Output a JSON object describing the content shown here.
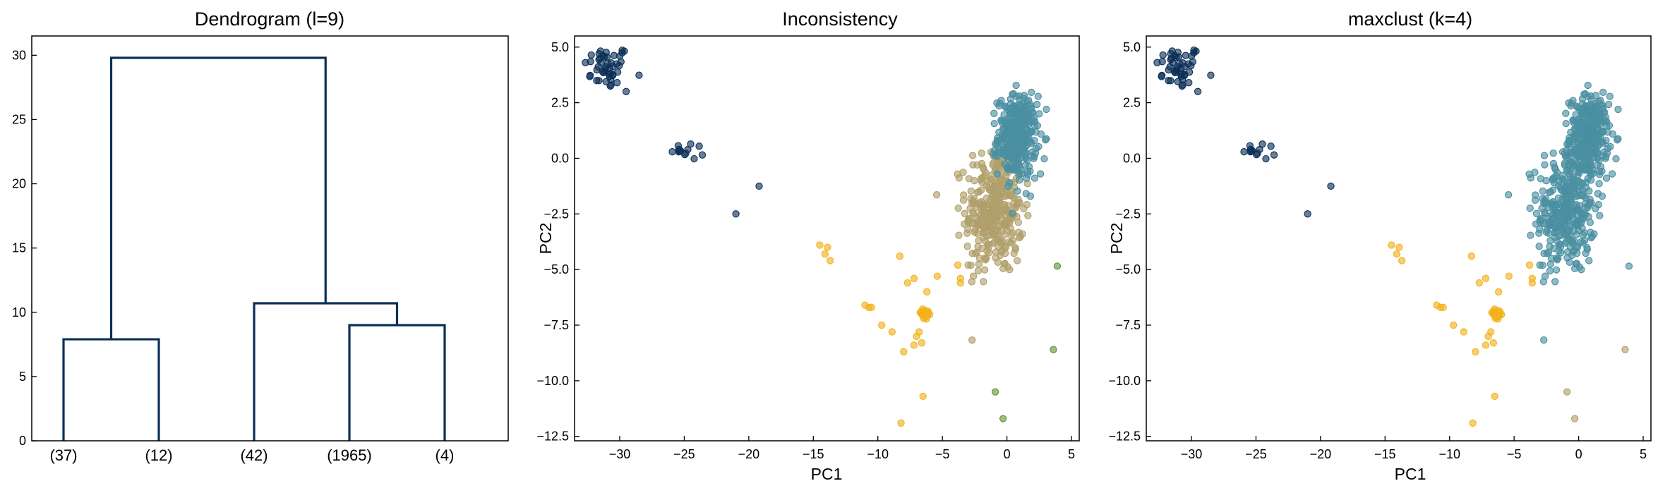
{
  "colors": {
    "navy": "#0b2f57",
    "teal": "#4a8fa1",
    "sand": "#b09f6a",
    "gold": "#f2b21a",
    "green": "#5e9636"
  },
  "chart_data": [
    {
      "type": "dendrogram",
      "title": "Dendrogram (l=9)",
      "xlabel": "",
      "ylabel": "",
      "ylim": [
        0,
        31.5
      ],
      "yticks": [
        0,
        5,
        10,
        15,
        20,
        25,
        30
      ],
      "leaves": [
        "(37)",
        "(12)",
        "(42)",
        "(1965)",
        "(4)"
      ],
      "links": [
        {
          "left": "(37)",
          "right": "(12)",
          "height": 7.9
        },
        {
          "left": "(1965)",
          "right": "(4)",
          "height": 9.0
        },
        {
          "left": "(42)",
          "right": "(1965)+(4)",
          "height": 10.7
        },
        {
          "left": "(37)+(12)",
          "right": "(42)+(1965)+(4)",
          "height": 29.8
        }
      ]
    },
    {
      "type": "scatter",
      "title": "Inconsistency",
      "xlabel": "PC1",
      "ylabel": "PC2",
      "xlim": [
        -33.5,
        5.6
      ],
      "ylim": [
        -12.7,
        5.5
      ],
      "xticks": [
        -30,
        -25,
        -20,
        -15,
        -10,
        -5,
        0,
        5
      ],
      "yticks": [
        -12.5,
        -10.0,
        -7.5,
        -5.0,
        -2.5,
        0.0,
        2.5,
        5.0
      ],
      "series": [
        {
          "color": "navy",
          "clusters": [
            {
              "center": [
                -31.0,
                4.1
              ],
              "spread": [
                0.9,
                0.5
              ],
              "count": 45
            },
            {
              "center": [
                -24.4,
                0.3
              ],
              "spread": [
                0.8,
                0.2
              ],
              "count": 12
            }
          ],
          "points": [
            [
              -29.5,
              3.0
            ],
            [
              -23.6,
              0.15
            ],
            [
              -21.0,
              -2.5
            ],
            [
              -19.2,
              -1.25
            ],
            [
              -30.2,
              3.4
            ],
            [
              -31.6,
              4.7
            ]
          ]
        },
        {
          "color": "sand",
          "clusters": [
            {
              "center": [
                -1.0,
                -2.3
              ],
              "spread": [
                1.1,
                1.4
              ],
              "count": 320
            }
          ],
          "points": [
            [
              -3.0,
              -4.8
            ],
            [
              -2.6,
              -5.3
            ],
            [
              -1.6,
              -4.5
            ],
            [
              -2.2,
              -3.7
            ],
            [
              0.2,
              -5.0
            ],
            [
              0.8,
              -4.6
            ],
            [
              1.2,
              -3.4
            ],
            [
              -2.3,
              -0.3
            ],
            [
              -0.6,
              0.0
            ]
          ]
        },
        {
          "color": "teal",
          "clusters": [
            {
              "center": [
                0.8,
                1.0
              ],
              "spread": [
                0.75,
                0.9
              ],
              "count": 320
            }
          ],
          "points": [
            [
              1.6,
              -0.6
            ],
            [
              1.5,
              -0.9
            ],
            [
              2.6,
              -0.7
            ],
            [
              2.5,
              2.0
            ],
            [
              1.3,
              2.7
            ],
            [
              -0.6,
              0.4
            ]
          ]
        },
        {
          "color": "gold",
          "clusters": [
            {
              "center": [
                -6.4,
                -7.0
              ],
              "spread": [
                0.3,
                0.15
              ],
              "count": 18
            }
          ],
          "points": [
            [
              -14.5,
              -3.9
            ],
            [
              -14.1,
              -4.3
            ],
            [
              -13.7,
              -4.6
            ],
            [
              -13.9,
              -4.0
            ],
            [
              -11.0,
              -6.6
            ],
            [
              -10.7,
              -6.7
            ],
            [
              -10.5,
              -6.7
            ],
            [
              -9.7,
              -7.5
            ],
            [
              -8.9,
              -7.8
            ],
            [
              -8.3,
              -4.4
            ],
            [
              -7.7,
              -5.6
            ],
            [
              -8.0,
              -8.7
            ],
            [
              -7.2,
              -5.4
            ],
            [
              -6.2,
              -6.0
            ],
            [
              -7.0,
              -8.0
            ],
            [
              -6.8,
              -7.8
            ],
            [
              -7.2,
              -8.4
            ],
            [
              -6.6,
              -8.3
            ],
            [
              -8.2,
              -11.9
            ],
            [
              -6.5,
              -10.7
            ],
            [
              -5.4,
              -5.3
            ],
            [
              -3.8,
              -4.8
            ],
            [
              -3.6,
              -5.4
            ],
            [
              -3.6,
              -5.6
            ]
          ]
        },
        {
          "color": "green",
          "points": [
            [
              3.9,
              -4.85
            ],
            [
              3.6,
              -8.6
            ],
            [
              -0.9,
              -10.5
            ],
            [
              -0.3,
              -11.7
            ]
          ]
        }
      ]
    },
    {
      "type": "scatter",
      "title": "maxclust (k=4)",
      "xlabel": "PC1",
      "ylabel": "PC2",
      "xlim": [
        -33.5,
        5.6
      ],
      "ylim": [
        -12.7,
        5.5
      ],
      "xticks": [
        -30,
        -25,
        -20,
        -15,
        -10,
        -5,
        0,
        5
      ],
      "yticks": [
        -12.5,
        -10.0,
        -7.5,
        -5.0,
        -2.5,
        0.0,
        2.5,
        5.0
      ],
      "series": [
        {
          "color": "navy",
          "clusters": [
            {
              "center": [
                -31.0,
                4.1
              ],
              "spread": [
                0.9,
                0.5
              ],
              "count": 45
            },
            {
              "center": [
                -24.4,
                0.3
              ],
              "spread": [
                0.8,
                0.2
              ],
              "count": 12
            }
          ],
          "points": [
            [
              -29.5,
              3.0
            ],
            [
              -23.6,
              0.15
            ],
            [
              -21.0,
              -2.5
            ],
            [
              -19.2,
              -1.25
            ],
            [
              -30.2,
              3.4
            ],
            [
              -31.6,
              4.7
            ]
          ]
        },
        {
          "color": "teal",
          "clusters": [
            {
              "center": [
                -1.0,
                -2.3
              ],
              "spread": [
                1.1,
                1.4
              ],
              "count": 320
            },
            {
              "center": [
                0.8,
                1.0
              ],
              "spread": [
                0.75,
                0.9
              ],
              "count": 320
            }
          ],
          "points": [
            [
              -3.0,
              -4.8
            ],
            [
              -2.6,
              -5.3
            ],
            [
              -1.6,
              -4.5
            ],
            [
              -2.2,
              -3.7
            ],
            [
              0.2,
              -5.0
            ],
            [
              0.8,
              -4.6
            ],
            [
              1.2,
              -3.4
            ],
            [
              1.6,
              -0.6
            ],
            [
              2.6,
              -0.7
            ],
            [
              3.9,
              -4.85
            ]
          ]
        },
        {
          "color": "gold",
          "clusters": [
            {
              "center": [
                -6.4,
                -7.0
              ],
              "spread": [
                0.3,
                0.15
              ],
              "count": 18
            }
          ],
          "points": [
            [
              -14.5,
              -3.9
            ],
            [
              -14.1,
              -4.3
            ],
            [
              -13.7,
              -4.6
            ],
            [
              -13.9,
              -4.0
            ],
            [
              -11.0,
              -6.6
            ],
            [
              -10.7,
              -6.7
            ],
            [
              -10.5,
              -6.7
            ],
            [
              -9.7,
              -7.5
            ],
            [
              -8.9,
              -7.8
            ],
            [
              -8.3,
              -4.4
            ],
            [
              -7.7,
              -5.6
            ],
            [
              -8.0,
              -8.7
            ],
            [
              -7.2,
              -5.4
            ],
            [
              -6.2,
              -6.0
            ],
            [
              -7.0,
              -8.0
            ],
            [
              -6.8,
              -7.8
            ],
            [
              -7.2,
              -8.4
            ],
            [
              -6.6,
              -8.3
            ],
            [
              -8.2,
              -11.9
            ],
            [
              -6.5,
              -10.7
            ],
            [
              -5.4,
              -5.3
            ],
            [
              -3.8,
              -4.8
            ],
            [
              -3.6,
              -5.4
            ],
            [
              -3.6,
              -5.6
            ]
          ]
        },
        {
          "color": "sand",
          "points": [
            [
              3.6,
              -8.6
            ],
            [
              -0.9,
              -10.5
            ],
            [
              -0.3,
              -11.7
            ]
          ]
        }
      ]
    }
  ]
}
